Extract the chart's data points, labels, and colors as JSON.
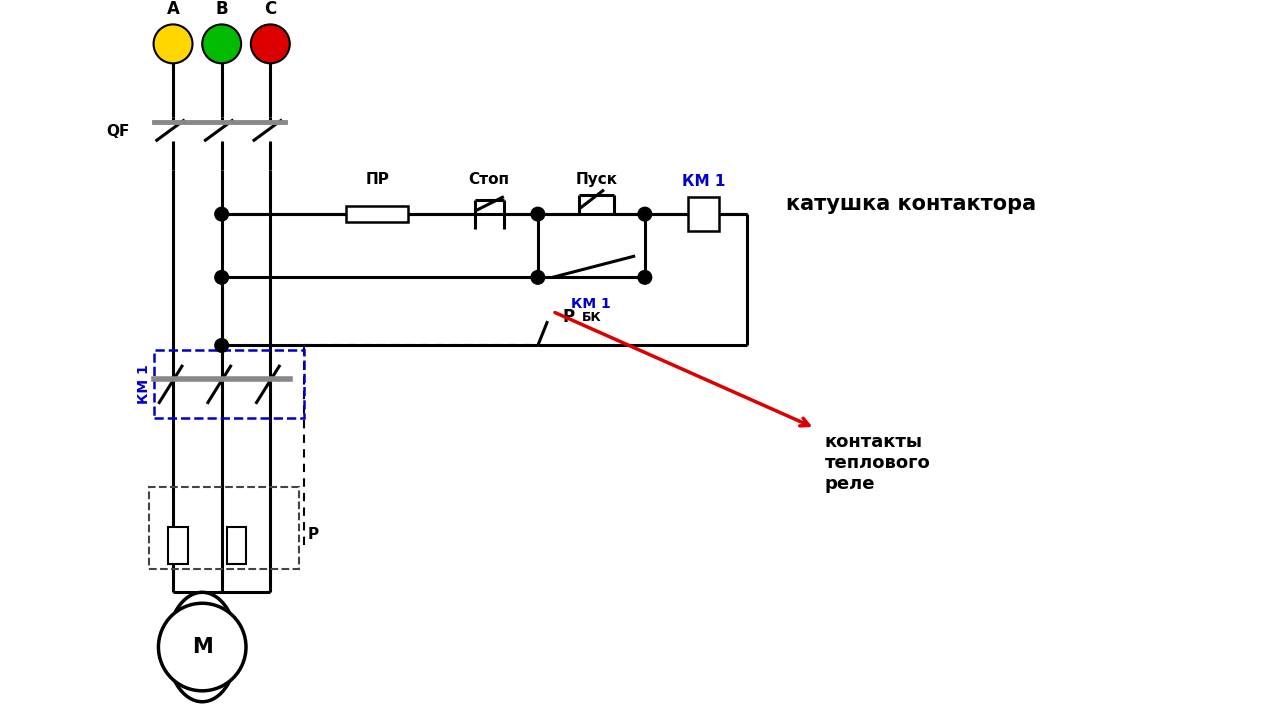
{
  "bg_color": "#ffffff",
  "colors": {
    "yellow": "#FFD700",
    "green": "#00BB00",
    "red": "#DD0000",
    "black": "#000000",
    "blue": "#0000CC",
    "gray": "#888888",
    "darkgray": "#444444"
  },
  "labels": {
    "A": "A",
    "B": "B",
    "C": "C",
    "QF": "QF",
    "PR": "ПР",
    "STOP": "Стоп",
    "START": "Пуск",
    "KM1": "КМ 1",
    "BK": "БК",
    "R": "Р",
    "M": "М",
    "coil_text": "катушка контактора",
    "contact_text": "контакты\nтеплового\nреле"
  }
}
